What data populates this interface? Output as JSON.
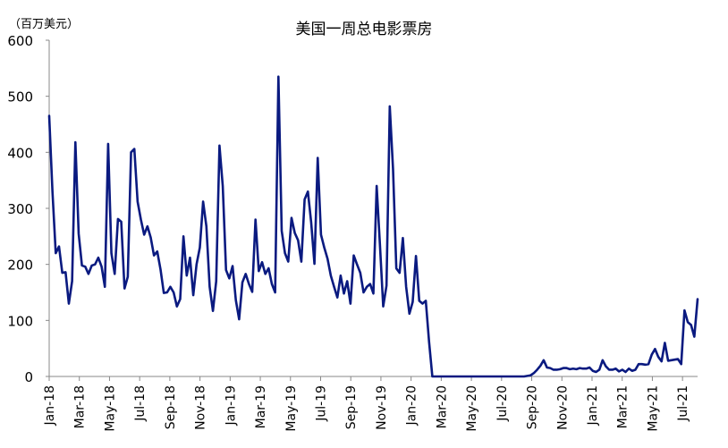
{
  "chart_data": {
    "type": "line",
    "title": "美国一周总电影票房",
    "unit_label": "（百万美元）",
    "xlabel": "",
    "ylabel": "",
    "ylim": [
      0,
      600
    ],
    "yticks": [
      0,
      100,
      200,
      300,
      400,
      500,
      600
    ],
    "grid": false,
    "x_tick_labels": [
      "Jan-18",
      "Mar-18",
      "May-18",
      "Jul-18",
      "Sep-18",
      "Nov-18",
      "Jan-19",
      "Mar-19",
      "May-19",
      "Jul-19",
      "Sep-19",
      "Nov-19",
      "Jan-20",
      "Mar-20",
      "May-20",
      "Jul-20",
      "Sep-20",
      "Nov-20",
      "Jan-21",
      "Mar-21",
      "May-21",
      "Jul-21"
    ],
    "x_start": "Jan-18",
    "x_end": "Jul-21",
    "series": [
      {
        "color": "#0a1a80",
        "values": [
          465,
          330,
          220,
          232,
          185,
          186,
          130,
          170,
          418,
          255,
          198,
          196,
          183,
          198,
          200,
          212,
          196,
          160,
          415,
          220,
          183,
          281,
          276,
          157,
          178,
          400,
          406,
          312,
          280,
          253,
          268,
          248,
          216,
          223,
          191,
          149,
          150,
          160,
          150,
          125,
          138,
          250,
          180,
          212,
          145,
          200,
          230,
          312,
          268,
          160,
          117,
          170,
          412,
          340,
          190,
          175,
          197,
          136,
          102,
          168,
          183,
          165,
          151,
          280,
          188,
          204,
          183,
          193,
          165,
          150,
          535,
          260,
          220,
          205,
          283,
          256,
          243,
          205,
          316,
          330,
          275,
          201,
          390,
          253,
          230,
          210,
          180,
          160,
          141,
          180,
          148,
          170,
          130,
          216,
          200,
          185,
          150,
          160,
          165,
          148,
          340,
          235,
          125,
          162,
          482,
          370,
          193,
          185,
          247,
          160,
          112,
          133,
          215,
          135,
          130,
          135,
          62,
          0,
          0,
          0,
          0,
          0,
          0,
          0,
          0,
          0,
          0,
          0,
          0,
          0,
          0,
          0,
          0,
          0,
          0,
          0,
          0,
          0,
          0,
          0,
          0,
          0,
          0,
          0,
          0,
          0,
          1,
          2,
          6,
          12,
          19,
          29,
          16,
          15,
          12,
          12,
          13,
          15,
          15,
          13,
          14,
          13,
          15,
          14,
          14,
          16,
          10,
          8,
          12,
          29,
          18,
          12,
          12,
          14,
          9,
          12,
          8,
          14,
          10,
          12,
          22,
          22,
          21,
          22,
          39,
          49,
          35,
          27,
          60,
          28,
          29,
          30,
          31,
          22,
          118,
          97,
          92,
          71,
          138
        ]
      }
    ]
  }
}
